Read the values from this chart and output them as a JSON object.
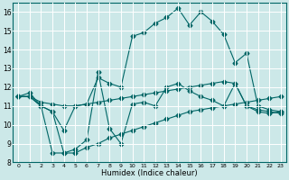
{
  "xlabel": "Humidex (Indice chaleur)",
  "xlim": [
    -0.5,
    23.5
  ],
  "ylim": [
    8,
    16.5
  ],
  "yticks": [
    8,
    9,
    10,
    11,
    12,
    13,
    14,
    15,
    16
  ],
  "xticks": [
    0,
    1,
    2,
    3,
    4,
    5,
    6,
    7,
    8,
    9,
    10,
    11,
    12,
    13,
    14,
    15,
    16,
    17,
    18,
    19,
    20,
    21,
    22,
    23
  ],
  "bg_color": "#cce8e8",
  "grid_color": "#aacccc",
  "line_color": "#006666",
  "line1_y": [
    11.5,
    11.7,
    11.0,
    10.7,
    9.7,
    11.0,
    11.1,
    12.5,
    12.2,
    12.0,
    14.7,
    14.9,
    15.4,
    15.7,
    16.2,
    15.3,
    16.0,
    15.5,
    14.8,
    13.3,
    13.8,
    11.0,
    10.8,
    10.7
  ],
  "line2_y": [
    11.5,
    11.5,
    11.0,
    10.7,
    8.5,
    8.7,
    9.2,
    12.8,
    9.8,
    9.0,
    11.1,
    11.2,
    11.0,
    12.0,
    12.2,
    11.8,
    11.5,
    11.3,
    11.0,
    12.2,
    11.0,
    10.7,
    10.6,
    10.7
  ],
  "line3_y": [
    11.5,
    11.5,
    11.2,
    11.1,
    11.0,
    11.0,
    11.1,
    11.2,
    11.3,
    11.4,
    11.5,
    11.6,
    11.7,
    11.8,
    11.9,
    12.0,
    12.1,
    12.2,
    12.3,
    12.2,
    11.0,
    10.8,
    10.7,
    10.6
  ],
  "line4_y": [
    11.5,
    11.5,
    11.0,
    8.5,
    8.5,
    8.5,
    8.8,
    9.0,
    9.3,
    9.5,
    9.7,
    9.9,
    10.1,
    10.3,
    10.5,
    10.7,
    10.8,
    10.9,
    11.0,
    11.1,
    11.2,
    11.3,
    11.4,
    11.5
  ]
}
